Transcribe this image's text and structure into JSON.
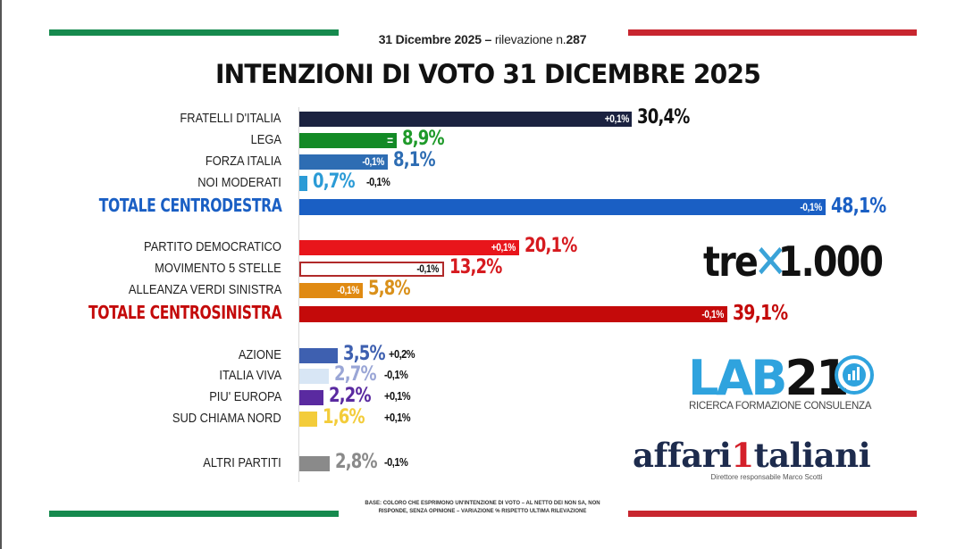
{
  "header": {
    "date_label": "31 Dicembre 2025",
    "separator": "–",
    "survey_label": "rilevazione n.",
    "survey_number": "287",
    "title": "INTENZIONI DI VOTO 31 DICEMBRE 2025"
  },
  "colors": {
    "flag_green": "#168a4e",
    "flag_red": "#c8262f",
    "centrodestra": "#1a5fc4",
    "centrosinistra": "#c40a0a"
  },
  "chart_data": {
    "type": "bar",
    "orientation": "horizontal",
    "title": "INTENZIONI DI VOTO 31 DICEMBRE 2025",
    "unit": "%",
    "xlim": [
      0,
      50
    ],
    "grid": false,
    "categories": [
      "FRATELLI D'ITALIA",
      "LEGA",
      "FORZA ITALIA",
      "NOI MODERATI",
      "TOTALE CENTRODESTRA",
      "PARTITO DEMOCRATICO",
      "MOVIMENTO 5 STELLE",
      "ALLEANZA VERDI SINISTRA",
      "TOTALE CENTROSINISTRA",
      "AZIONE",
      "ITALIA VIVA",
      "PIU' EUROPA",
      "SUD CHIAMA NORD",
      "ALTRI PARTITI"
    ],
    "values": [
      30.4,
      8.9,
      8.1,
      0.7,
      48.1,
      20.1,
      13.2,
      5.8,
      39.1,
      3.5,
      2.7,
      2.2,
      1.6,
      2.8
    ],
    "bars": [
      {
        "label": "FRATELLI D'ITALIA",
        "value": 30.4,
        "value_label": "30,4%",
        "change": "+0,1%",
        "color": "#1b2240",
        "value_color": "#111111",
        "total": false,
        "change_inside": true
      },
      {
        "label": "LEGA",
        "value": 8.9,
        "value_label": "8,9%",
        "change": "=",
        "color": "#138a26",
        "value_color": "#1f9a2a",
        "total": false,
        "change_inside": true
      },
      {
        "label": "FORZA ITALIA",
        "value": 8.1,
        "value_label": "8,1%",
        "change": "-0,1%",
        "color": "#2e6db3",
        "value_color": "#2e6db3",
        "total": false,
        "change_inside": true
      },
      {
        "label": "NOI MODERATI",
        "value": 0.7,
        "value_label": "0,7%",
        "change": "-0,1%",
        "color": "#2b9bd6",
        "value_color": "#2b9bd6",
        "total": false,
        "change_inside": false
      },
      {
        "label": "TOTALE CENTRODESTRA",
        "value": 48.1,
        "value_label": "48,1%",
        "change": "-0,1%",
        "color": "#1a5fc4",
        "value_color": "#1a5fc4",
        "label_color": "#1a5fc4",
        "total": true,
        "change_inside": true
      },
      {
        "label": "PARTITO DEMOCRATICO",
        "value": 20.1,
        "value_label": "20,1%",
        "change": "+0,1%",
        "color": "#e8151b",
        "value_color": "#d61a1f",
        "total": false,
        "change_inside": true
      },
      {
        "label": "MOVIMENTO 5 STELLE",
        "value": 13.2,
        "value_label": "13,2%",
        "change": "-0,1%",
        "color": "#ffffff",
        "outline": "#b02a2a",
        "value_color": "#d61a1f",
        "change_color": "#111111",
        "total": false,
        "change_inside": true
      },
      {
        "label": "ALLEANZA VERDI SINISTRA",
        "value": 5.8,
        "value_label": "5,8%",
        "change": "-0,1%",
        "color": "#e08a12",
        "value_color": "#d9901a",
        "total": false,
        "change_inside": true
      },
      {
        "label": "TOTALE CENTROSINISTRA",
        "value": 39.1,
        "value_label": "39,1%",
        "change": "-0,1%",
        "color": "#c40a0a",
        "value_color": "#c40a0a",
        "label_color": "#c40a0a",
        "total": true,
        "change_inside": true
      },
      {
        "label": "AZIONE",
        "value": 3.5,
        "value_label": "3,5%",
        "change": "+0,2%",
        "color": "#3e60b0",
        "value_color": "#3e60b0",
        "total": false,
        "change_inside": false
      },
      {
        "label": "ITALIA VIVA",
        "value": 2.7,
        "value_label": "2,7%",
        "change": "-0,1%",
        "color": "#d8e6f5",
        "value_color": "#9aa6d6",
        "total": false,
        "change_inside": false
      },
      {
        "label": "PIU' EUROPA",
        "value": 2.2,
        "value_label": "2,2%",
        "change": "+0,1%",
        "color": "#5a2aa0",
        "value_color": "#5a2aa0",
        "total": false,
        "change_inside": false
      },
      {
        "label": "SUD CHIAMA NORD",
        "value": 1.6,
        "value_label": "1,6%",
        "change": "+0,1%",
        "color": "#f3cc3a",
        "value_color": "#f3cc3a",
        "total": false,
        "change_inside": false
      },
      {
        "label": "ALTRI PARTITI",
        "value": 2.8,
        "value_label": "2,8%",
        "change": "-0,1%",
        "color": "#8a8a8a",
        "value_color": "#8a8a8a",
        "total": false,
        "change_inside": false
      }
    ]
  },
  "logos": {
    "tre_prefix": "tre",
    "tre_x": "✕",
    "tre_suffix": "1.000",
    "lab21_a": "LAB",
    "lab21_b": "21",
    "lab21_tagline": "RICERCA FORMAZIONE CONSULENZA",
    "affari_a": "affari",
    "affari_one": "1",
    "affari_b": "taliani",
    "affari_director": "Direttore responsabile Marco Scotti"
  },
  "footnote": {
    "line1": "BASE: COLORO CHE ESPRIMONO UN'INTENZIONE DI VOTO – AL NETTO DEI NON SA, NON",
    "line2": "RISPONDE, SENZA OPINIONE – VARIAZIONE % RISPETTO ULTIMA RILEVAZIONE"
  }
}
